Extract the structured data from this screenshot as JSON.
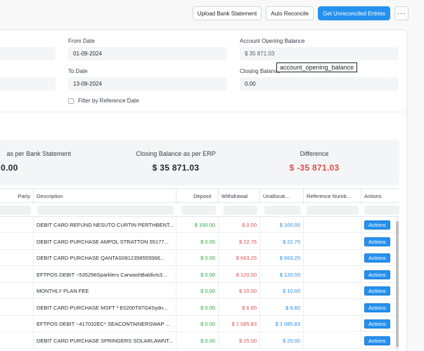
{
  "toolbar": {
    "upload_label": "Upload Bank Statement",
    "auto_reconcile_label": "Auto Reconcile",
    "get_unreconciled_label": "Get Unreconciled Entries",
    "more_label": "···"
  },
  "form": {
    "from_date_label": "From Date",
    "from_date_value": "01-09-2024",
    "to_date_label": "To Date",
    "to_date_value": "13-09-2024",
    "opening_balance_label": "Account Opening Balance",
    "opening_balance_value": "$ 35 871.03",
    "closing_balance_label": "Closing Balance",
    "closing_balance_value": "0.00",
    "filter_ref_label": "Filter by Reference Date",
    "tooltip": "account_opening_balance"
  },
  "summary": {
    "bank_label": "as per Bank Statement",
    "bank_value": "0.00",
    "erp_label": "Closing Balance as per ERP",
    "erp_value": "$ 35 871.03",
    "diff_label": "Difference",
    "diff_value": "$ -35 871.03"
  },
  "table": {
    "headers": {
      "party": "Party",
      "description": "Description",
      "deposit": "Deposit",
      "withdrawal": "Withdrawal",
      "unallocated": "Unallocat...",
      "reference": "Reference Numb...",
      "actions": "Actions"
    },
    "action_label": "Actions",
    "rows": [
      {
        "description": "DEBIT CARD REFUND NESUTO CURTIN PERTHBENT...",
        "deposit": "$ 100.00",
        "withdrawal": "$ 0.00",
        "unallocated": "$ 100.00"
      },
      {
        "description": "DEBIT CARD PURCHASE AMPOL STRATTON 55177...",
        "deposit": "$ 0.00",
        "withdrawal": "$ 22.75",
        "unallocated": "$ 22.75"
      },
      {
        "description": "DEBIT CARD PURCHASE QANTAS0812358555566...",
        "deposit": "$ 0.00",
        "withdrawal": "$ 663.25",
        "unallocated": "$ 663.25"
      },
      {
        "description": "EFTPOS DEBIT ~535296Sparklers CarwashBaldivis3...",
        "deposit": "$ 0.00",
        "withdrawal": "$ 120.00",
        "unallocated": "$ 120.00"
      },
      {
        "description": "MONTHLY PLAN FEE",
        "deposit": "$ 0.00",
        "withdrawal": "$ 10.00",
        "unallocated": "$ 10.00"
      },
      {
        "description": "DEBIT CARD PURCHASE MSFT * E0200T87G4Sydn...",
        "deposit": "$ 0.00",
        "withdrawal": "$ 6.60",
        "unallocated": "$ 6.60"
      },
      {
        "description": "EFTPOS DEBIT ~417032EC* SEACONTAINERSWAP ...",
        "deposit": "$ 0.00",
        "withdrawal": "$ 1 085.83",
        "unallocated": "$ 1 085.83"
      },
      {
        "description": "DEBIT CARD PURCHASE SPRINGERS SOLARLAWNT...",
        "deposit": "$ 0.00",
        "withdrawal": "$ 25.00",
        "unallocated": "$ 25.00"
      }
    ]
  }
}
